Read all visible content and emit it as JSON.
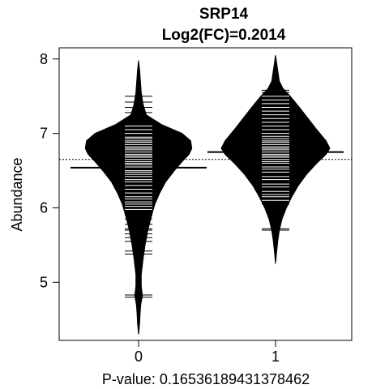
{
  "chart_data": {
    "type": "beanplot",
    "title": "SRP14",
    "subtitle": "Log2(FC)=0.2014",
    "xlabel": "P-value: 0.16536189431378462",
    "ylabel": "Abundance",
    "categories": [
      "0",
      "1"
    ],
    "ylim": [
      4.22,
      8.15
    ],
    "yticks": [
      5,
      6,
      7,
      8
    ],
    "overall_mean": 6.65,
    "grid": false,
    "colors": {
      "bean": "#000000",
      "lines": "#ffffff",
      "background": "#ffffff"
    },
    "groups": [
      {
        "name": "0",
        "mean": 6.54,
        "range": [
          4.3,
          7.98
        ],
        "density": [
          [
            4.3,
            0.0
          ],
          [
            4.45,
            0.02
          ],
          [
            4.6,
            0.03
          ],
          [
            4.7,
            0.04
          ],
          [
            4.82,
            0.07
          ],
          [
            4.95,
            0.05
          ],
          [
            5.1,
            0.05
          ],
          [
            5.3,
            0.08
          ],
          [
            5.5,
            0.12
          ],
          [
            5.7,
            0.17
          ],
          [
            5.9,
            0.24
          ],
          [
            6.05,
            0.3
          ],
          [
            6.2,
            0.39
          ],
          [
            6.35,
            0.5
          ],
          [
            6.5,
            0.66
          ],
          [
            6.62,
            0.8
          ],
          [
            6.72,
            0.93
          ],
          [
            6.8,
            0.98
          ],
          [
            6.9,
            0.96
          ],
          [
            7.0,
            0.8
          ],
          [
            7.12,
            0.42
          ],
          [
            7.25,
            0.14
          ],
          [
            7.4,
            0.08
          ],
          [
            7.55,
            0.05
          ],
          [
            7.7,
            0.035
          ],
          [
            7.85,
            0.02
          ],
          [
            7.98,
            0.0
          ]
        ],
        "observations": [
          4.8,
          4.83,
          5.38,
          5.42,
          5.55,
          5.6,
          5.65,
          5.7,
          5.72,
          5.78,
          5.85,
          5.9,
          5.93,
          5.98,
          6.02,
          6.05,
          6.08,
          6.12,
          6.15,
          6.2,
          6.25,
          6.3,
          6.35,
          6.38,
          6.42,
          6.45,
          6.48,
          6.5,
          6.55,
          6.58,
          6.6,
          6.62,
          6.65,
          6.68,
          6.7,
          6.72,
          6.75,
          6.78,
          6.8,
          6.82,
          6.85,
          6.88,
          6.9,
          6.93,
          6.95,
          7.0,
          7.05,
          7.1,
          7.2,
          7.28,
          7.35,
          7.42,
          7.5
        ]
      },
      {
        "name": "1",
        "mean": 6.75,
        "range": [
          5.25,
          8.05
        ],
        "density": [
          [
            5.25,
            0.0
          ],
          [
            5.4,
            0.02
          ],
          [
            5.55,
            0.04
          ],
          [
            5.7,
            0.07
          ],
          [
            5.85,
            0.12
          ],
          [
            6.0,
            0.2
          ],
          [
            6.15,
            0.3
          ],
          [
            6.3,
            0.42
          ],
          [
            6.45,
            0.57
          ],
          [
            6.6,
            0.76
          ],
          [
            6.72,
            0.93
          ],
          [
            6.8,
            1.0
          ],
          [
            6.9,
            0.93
          ],
          [
            7.05,
            0.76
          ],
          [
            7.2,
            0.6
          ],
          [
            7.35,
            0.44
          ],
          [
            7.5,
            0.27
          ],
          [
            7.6,
            0.14
          ],
          [
            7.7,
            0.07
          ],
          [
            7.8,
            0.05
          ],
          [
            7.9,
            0.03
          ],
          [
            8.05,
            0.0
          ]
        ],
        "observations": [
          5.7,
          5.72,
          6.05,
          6.1,
          6.15,
          6.18,
          6.22,
          6.28,
          6.32,
          6.38,
          6.42,
          6.48,
          6.52,
          6.55,
          6.6,
          6.62,
          6.65,
          6.68,
          6.7,
          6.72,
          6.75,
          6.78,
          6.8,
          6.82,
          6.85,
          6.88,
          6.9,
          6.93,
          6.96,
          7.0,
          7.05,
          7.1,
          7.15,
          7.2,
          7.25,
          7.3,
          7.35,
          7.4,
          7.45,
          7.5,
          7.55,
          7.58
        ]
      }
    ]
  }
}
